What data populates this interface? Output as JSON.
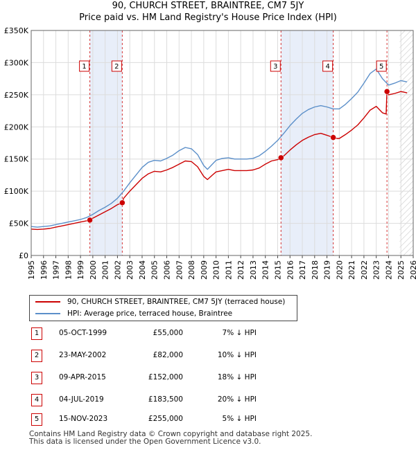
{
  "chart_data": {
    "type": "line",
    "title": "90, CHURCH STREET, BRAINTREE, CM7 5JY",
    "subtitle": "Price paid vs. HM Land Registry's House Price Index (HPI)",
    "xlabel": "",
    "ylabel": "",
    "xlim": [
      1995,
      2026
    ],
    "ylim": [
      0,
      350000
    ],
    "grid": true,
    "x_ticks": [
      "1995",
      "1996",
      "1997",
      "1998",
      "1999",
      "2000",
      "2001",
      "2002",
      "2003",
      "2004",
      "2005",
      "2006",
      "2007",
      "2008",
      "2009",
      "2010",
      "2011",
      "2012",
      "2013",
      "2014",
      "2015",
      "2016",
      "2017",
      "2018",
      "2019",
      "2020",
      "2021",
      "2022",
      "2023",
      "2024",
      "2025",
      "2026"
    ],
    "y_ticks": [
      {
        "value": 0,
        "label": "£0"
      },
      {
        "value": 50000,
        "label": "£50K"
      },
      {
        "value": 100000,
        "label": "£100K"
      },
      {
        "value": 150000,
        "label": "£150K"
      },
      {
        "value": 200000,
        "label": "£200K"
      },
      {
        "value": 250000,
        "label": "£250K"
      },
      {
        "value": 300000,
        "label": "£300K"
      },
      {
        "value": 350000,
        "label": "£350K"
      }
    ],
    "series": [
      {
        "name": "HPI: Average price, terraced house, Braintree",
        "color": "#5b8fc9",
        "x": [
          1995,
          1995.5,
          1996,
          1996.5,
          1997,
          1997.5,
          1998,
          1998.5,
          1999,
          1999.5,
          2000,
          2000.5,
          2001,
          2001.5,
          2002,
          2002.5,
          2003,
          2003.5,
          2004,
          2004.5,
          2005,
          2005.5,
          2006,
          2006.5,
          2007,
          2007.5,
          2008,
          2008.5,
          2009,
          2009.3,
          2009.7,
          2010,
          2010.5,
          2011,
          2011.5,
          2012,
          2012.5,
          2013,
          2013.5,
          2014,
          2014.5,
          2015,
          2015.5,
          2016,
          2016.5,
          2017,
          2017.5,
          2018,
          2018.5,
          2019,
          2019.5,
          2020,
          2020.5,
          2021,
          2021.5,
          2022,
          2022.5,
          2023,
          2023.5,
          2024,
          2024.5,
          2025,
          2025.5
        ],
        "values": [
          45000,
          44000,
          45000,
          46000,
          48000,
          50000,
          52000,
          54000,
          56000,
          59000,
          64000,
          70000,
          75000,
          81000,
          89000,
          100000,
          113000,
          125000,
          137000,
          145000,
          148000,
          147000,
          151000,
          156000,
          163000,
          168000,
          166000,
          157000,
          140000,
          134000,
          142000,
          148000,
          151000,
          152000,
          150000,
          150000,
          150000,
          151000,
          155000,
          162000,
          170000,
          179000,
          190000,
          202000,
          212000,
          221000,
          227000,
          231000,
          233000,
          231000,
          228000,
          228000,
          235000,
          244000,
          254000,
          268000,
          283000,
          290000,
          275000,
          265000,
          268000,
          272000,
          270000
        ]
      },
      {
        "name": "90, CHURCH STREET, BRAINTREE, CM7 5JY (terraced house)",
        "color": "#cc0000",
        "x": [
          1995,
          1995.5,
          1996,
          1996.5,
          1997,
          1997.5,
          1998,
          1998.5,
          1999,
          1999.5,
          1999.76,
          2000,
          2000.5,
          2001,
          2001.5,
          2002,
          2002.39,
          2002.5,
          2003,
          2003.5,
          2004,
          2004.5,
          2005,
          2005.5,
          2006,
          2006.5,
          2007,
          2007.5,
          2008,
          2008.5,
          2009,
          2009.3,
          2009.7,
          2010,
          2010.5,
          2011,
          2011.5,
          2012,
          2012.5,
          2013,
          2013.5,
          2014,
          2014.5,
          2015,
          2015.27,
          2015.5,
          2016,
          2016.5,
          2017,
          2017.5,
          2018,
          2018.5,
          2019,
          2019.51,
          2019.8,
          2020,
          2020.5,
          2021,
          2021.5,
          2022,
          2022.5,
          2023,
          2023.5,
          2023.8,
          2023.87,
          2024,
          2024.5,
          2025,
          2025.5
        ],
        "values": [
          41000,
          40500,
          41000,
          42000,
          44000,
          46000,
          48000,
          50000,
          52000,
          54000,
          55000,
          58000,
          63000,
          68000,
          73000,
          79000,
          82000,
          89000,
          100000,
          110000,
          120000,
          127000,
          131000,
          130000,
          133000,
          137000,
          142000,
          147000,
          146000,
          138000,
          123000,
          118000,
          125000,
          130000,
          132000,
          134000,
          132000,
          132000,
          132000,
          133000,
          136000,
          142000,
          147000,
          149000,
          152000,
          155000,
          164000,
          172000,
          179000,
          184000,
          188000,
          190000,
          187000,
          183500,
          182000,
          182000,
          188000,
          195000,
          203000,
          214000,
          226000,
          232000,
          222000,
          220000,
          255000,
          250000,
          252000,
          255000,
          253000
        ]
      }
    ],
    "sales": [
      {
        "id": "1",
        "x": 1999.76,
        "price": 55000,
        "date": "05-OCT-1999",
        "price_label": "£55,000",
        "hpi": "7% ↓ HPI"
      },
      {
        "id": "2",
        "x": 2002.39,
        "price": 82000,
        "date": "23-MAY-2002",
        "price_label": "£82,000",
        "hpi": "10% ↓ HPI"
      },
      {
        "id": "3",
        "x": 2015.27,
        "price": 152000,
        "date": "09-APR-2015",
        "price_label": "£152,000",
        "hpi": "18% ↓ HPI"
      },
      {
        "id": "4",
        "x": 2019.51,
        "price": 183500,
        "date": "04-JUL-2019",
        "price_label": "£183,500",
        "hpi": "20% ↓ HPI"
      },
      {
        "id": "5",
        "x": 2023.87,
        "price": 255000,
        "date": "15-NOV-2023",
        "price_label": "£255,000",
        "hpi": "5% ↓ HPI"
      }
    ],
    "highlight_spans": [
      [
        1999.76,
        2002.39
      ],
      [
        2015.27,
        2019.51
      ]
    ],
    "future_start": 2024.9
  },
  "legend": {
    "property_label": "90, CHURCH STREET, BRAINTREE, CM7 5JY (terraced house)",
    "hpi_label": "HPI: Average price, terraced house, Braintree",
    "property_color": "#cc0000",
    "hpi_color": "#5b8fc9"
  },
  "footer": {
    "line1": "Contains HM Land Registry data © Crown copyright and database right 2025.",
    "line2": "This data is licensed under the Open Government Licence v3.0."
  }
}
